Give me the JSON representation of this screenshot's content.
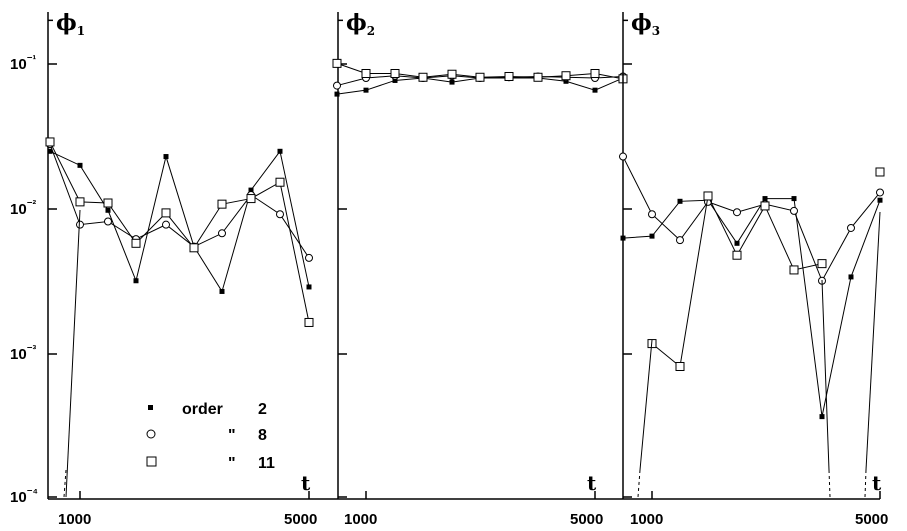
{
  "chart_data": [
    {
      "type": "line",
      "panel": "phi1",
      "title_symbol": "ϕ",
      "title_subscript": "1",
      "xlabel": "t",
      "x_ticks": [
        "1000",
        "5000"
      ],
      "y_ticks": [
        "10⁻¹",
        "10⁻²",
        "10⁻³",
        "10⁻⁴"
      ],
      "x": [
        750,
        1000,
        1333,
        1667,
        2000,
        2333,
        2667,
        3000,
        3333,
        3667,
        4000
      ],
      "series": [
        {
          "name": "order 2",
          "marker": "filled-square",
          "values": [
            0.025,
            0.02,
            0.0098,
            0.0032,
            0.023,
            0.0055,
            0.0027,
            0.0135,
            0.025,
            0.0029,
            null
          ]
        },
        {
          "name": "order 8",
          "marker": "open-circle",
          "values": [
            0.028,
            0.0078,
            0.0082,
            0.0062,
            0.0078,
            0.0055,
            0.0068,
            0.0125,
            0.0092,
            0.0046,
            null
          ]
        },
        {
          "name": "order 11",
          "marker": "open-square",
          "values": [
            0.029,
            0.0112,
            0.011,
            0.0058,
            0.0094,
            0.0054,
            0.0108,
            0.0118,
            0.0153,
            0.00165,
            null
          ]
        }
      ],
      "legend": [
        {
          "marker": "filled-square",
          "label": "order",
          "value": "2"
        },
        {
          "marker": "open-circle",
          "label": "\"",
          "value": "8"
        },
        {
          "marker": "open-square",
          "label": "\"",
          "value": "11"
        }
      ]
    },
    {
      "type": "line",
      "panel": "phi2",
      "title_symbol": "ϕ",
      "title_subscript": "2",
      "xlabel": "t",
      "x_ticks": [
        "1000",
        "5000"
      ],
      "series": [
        {
          "name": "order 2",
          "values": [
            0.062,
            0.066,
            0.077,
            0.08,
            0.075,
            0.08,
            0.08,
            0.08,
            0.076,
            0.066,
            0.08
          ]
        },
        {
          "name": "order 8",
          "values": [
            0.071,
            0.08,
            0.083,
            0.08,
            0.083,
            0.08,
            0.081,
            0.082,
            0.081,
            0.08,
            0.082
          ]
        },
        {
          "name": "order 11",
          "values": [
            0.101,
            0.086,
            0.086,
            0.081,
            0.085,
            0.081,
            0.082,
            0.081,
            0.083,
            0.086,
            0.079
          ]
        }
      ]
    },
    {
      "type": "line",
      "panel": "phi3",
      "title_symbol": "ϕ",
      "title_subscript": "3",
      "xlabel": "t",
      "x_ticks": [
        "1000",
        "5000"
      ],
      "series": [
        {
          "name": "order 2",
          "values": [
            0.0063,
            0.0065,
            0.0113,
            0.0115,
            0.0058,
            0.0118,
            0.0118,
            0.00037,
            0.0034,
            0.0115
          ]
        },
        {
          "name": "order 8",
          "values": [
            0.023,
            0.0092,
            0.0061,
            0.0112,
            0.0095,
            0.0108,
            0.0097,
            0.0032,
            0.0074,
            0.013
          ]
        },
        {
          "name": "order 11",
          "values": [
            null,
            0.00118,
            0.00082,
            0.0123,
            0.0048,
            0.0105,
            0.0038,
            0.0042,
            null,
            0.018
          ]
        }
      ]
    }
  ]
}
